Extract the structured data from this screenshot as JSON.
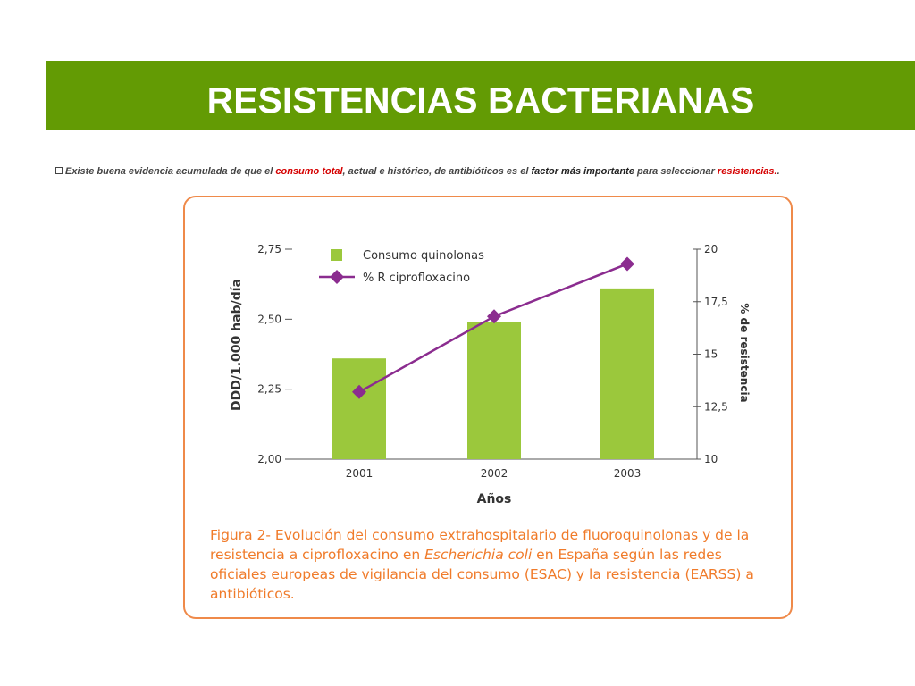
{
  "slide": {
    "title": "RESISTENCIAS BACTERIANAS",
    "header_color": "#639b04"
  },
  "bullet": {
    "p1": "Existe buena evidencia acumulada de que el ",
    "hl1": "consumo total",
    "p2": ", actual e histórico, de antibióticos es el ",
    "strong1": "factor más importante",
    "p3": " para seleccionar ",
    "hl2": "resistencias.",
    "p4": "."
  },
  "chart_data": {
    "type": "bar",
    "categories": [
      "2001",
      "2002",
      "2003"
    ],
    "xlabel": "Años",
    "y_left": {
      "label": "DDD/1.000 hab/día",
      "ylim": [
        2.0,
        2.75
      ],
      "ticks": [
        "2,00",
        "2,25",
        "2,50",
        "2,75"
      ],
      "tick_values": [
        2.0,
        2.25,
        2.5,
        2.75
      ]
    },
    "y_right": {
      "label": "% de resistencia",
      "ylim": [
        10,
        20
      ],
      "ticks": [
        "10",
        "12,5",
        "15",
        "17,5",
        "20"
      ],
      "tick_values": [
        10,
        12.5,
        15,
        17.5,
        20
      ]
    },
    "series": [
      {
        "name": "Consumo quinolonas",
        "type": "bar",
        "axis": "left",
        "color": "#9bc83c",
        "values": [
          2.36,
          2.49,
          2.61
        ]
      },
      {
        "name": "% R ciprofloxacino",
        "type": "line",
        "axis": "right",
        "color": "#8b2c8f",
        "values": [
          13.2,
          16.8,
          19.3
        ]
      }
    ],
    "legend_position": "top-left",
    "grid": false
  },
  "caption": {
    "p1": "Figura 2- Evolución del consumo extrahospitalario de fluoroquinolonas y de la resistencia a ciprofloxacino en ",
    "italic": "Escherichia coli",
    "p2": " en España según las redes oficiales europeas de vigilancia del consumo (ESAC) y la resistencia (EARSS) a antibióticos."
  },
  "colors": {
    "frame_border": "#ef8a4a",
    "caption_text": "#f07b2a",
    "highlight": "#d50000"
  }
}
